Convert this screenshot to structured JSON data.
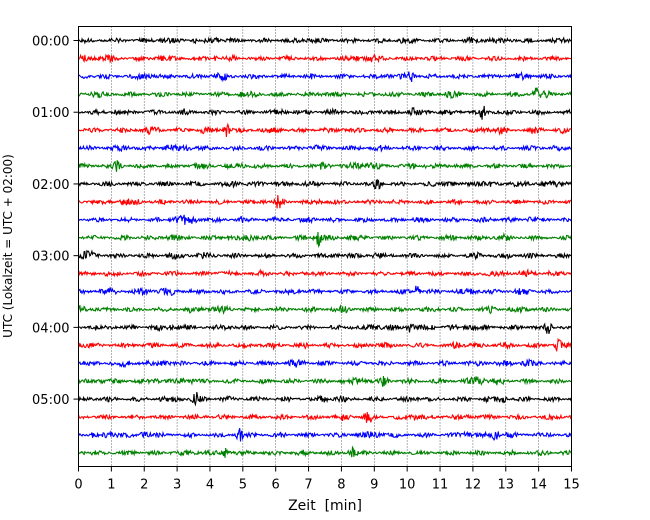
{
  "chart_data": {
    "type": "line",
    "title": "",
    "xlabel": "Zeit  [min]",
    "ylabel": "UTC (Lokalzeit = UTC + 02:00)",
    "xlim": [
      0,
      15
    ],
    "x_ticks": [
      0,
      1,
      2,
      3,
      4,
      5,
      6,
      7,
      8,
      9,
      10,
      11,
      12,
      13,
      14,
      15
    ],
    "x_grid": "dotted vertical lines at each minute",
    "trace_colors": [
      "#000000",
      "#ff0000",
      "#0000ff",
      "#008000"
    ],
    "trace_interval_minutes": 15,
    "y_ticks": [
      "00:00",
      "01:00",
      "02:00",
      "03:00",
      "04:00",
      "05:00"
    ],
    "traces": [
      {
        "start": "00:00",
        "color": "#000000",
        "events": []
      },
      {
        "start": "00:15",
        "color": "#ff0000",
        "events": []
      },
      {
        "start": "00:30",
        "color": "#0000ff",
        "events": [
          10.1
        ]
      },
      {
        "start": "00:45",
        "color": "#008000",
        "events": [
          13.9
        ]
      },
      {
        "start": "01:00",
        "color": "#000000",
        "events": [
          12.3
        ]
      },
      {
        "start": "01:15",
        "color": "#ff0000",
        "events": [
          4.5
        ]
      },
      {
        "start": "01:30",
        "color": "#0000ff",
        "events": []
      },
      {
        "start": "01:45",
        "color": "#008000",
        "events": [
          1.2
        ]
      },
      {
        "start": "02:00",
        "color": "#000000",
        "events": [
          9.1
        ]
      },
      {
        "start": "02:15",
        "color": "#ff0000",
        "events": [
          6.1
        ]
      },
      {
        "start": "02:30",
        "color": "#0000ff",
        "events": []
      },
      {
        "start": "02:45",
        "color": "#008000",
        "events": [
          7.3
        ]
      },
      {
        "start": "03:00",
        "color": "#000000",
        "events": []
      },
      {
        "start": "03:15",
        "color": "#ff0000",
        "events": []
      },
      {
        "start": "03:30",
        "color": "#0000ff",
        "events": [
          10.3
        ]
      },
      {
        "start": "03:45",
        "color": "#008000",
        "events": []
      },
      {
        "start": "04:00",
        "color": "#000000",
        "events": [
          10.1,
          14.3
        ]
      },
      {
        "start": "04:15",
        "color": "#ff0000",
        "events": [
          14.6
        ]
      },
      {
        "start": "04:30",
        "color": "#0000ff",
        "events": []
      },
      {
        "start": "04:45",
        "color": "#008000",
        "events": [
          9.3
        ]
      },
      {
        "start": "05:00",
        "color": "#000000",
        "events": [
          3.6,
          12.9
        ]
      },
      {
        "start": "05:15",
        "color": "#ff0000",
        "events": [
          8.8
        ]
      },
      {
        "start": "05:30",
        "color": "#0000ff",
        "events": [
          4.9,
          12.7
        ]
      },
      {
        "start": "05:45",
        "color": "#008000",
        "events": [
          4.5,
          8.3
        ]
      }
    ]
  }
}
